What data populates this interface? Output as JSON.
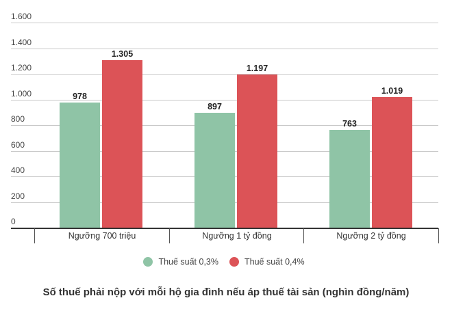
{
  "chart_data": {
    "type": "bar",
    "title": "Số thuế phải nộp với mỗi hộ gia đình nếu áp thuế tài sản (nghìn đồng/năm)",
    "xlabel": "",
    "ylabel": "",
    "categories": [
      "Ngưỡng 700 triệu",
      "Ngưỡng 1 tỷ đồng",
      "Ngưỡng 2 tỷ đồng"
    ],
    "series": [
      {
        "name": "Thuế suất 0,3%",
        "color": "#8fc4a6",
        "values": [
          978,
          897,
          763
        ],
        "labels": [
          "978",
          "897",
          "763"
        ]
      },
      {
        "name": "Thuế suất 0,4%",
        "color": "#dc5357",
        "values": [
          1305,
          1197,
          1019
        ],
        "labels": [
          "1.305",
          "1.197",
          "1.019"
        ]
      }
    ],
    "ylim": [
      0,
      1600
    ],
    "yticks": [
      0,
      200,
      400,
      600,
      800,
      1000,
      1200,
      1400,
      1600
    ],
    "ytick_labels": [
      "0",
      "200",
      "400",
      "600",
      "800",
      "1.000",
      "1.200",
      "1.400",
      "1.600"
    ],
    "grid": true,
    "legend_position": "bottom"
  },
  "legend": [
    {
      "label": "Thuế suất 0,3%",
      "color": "#8fc4a6"
    },
    {
      "label": "Thuế suất 0,4%",
      "color": "#dc5357"
    }
  ],
  "title": "Số thuế phải nộp với mỗi hộ gia đình nếu áp thuế tài sản (nghìn đồng/năm)"
}
